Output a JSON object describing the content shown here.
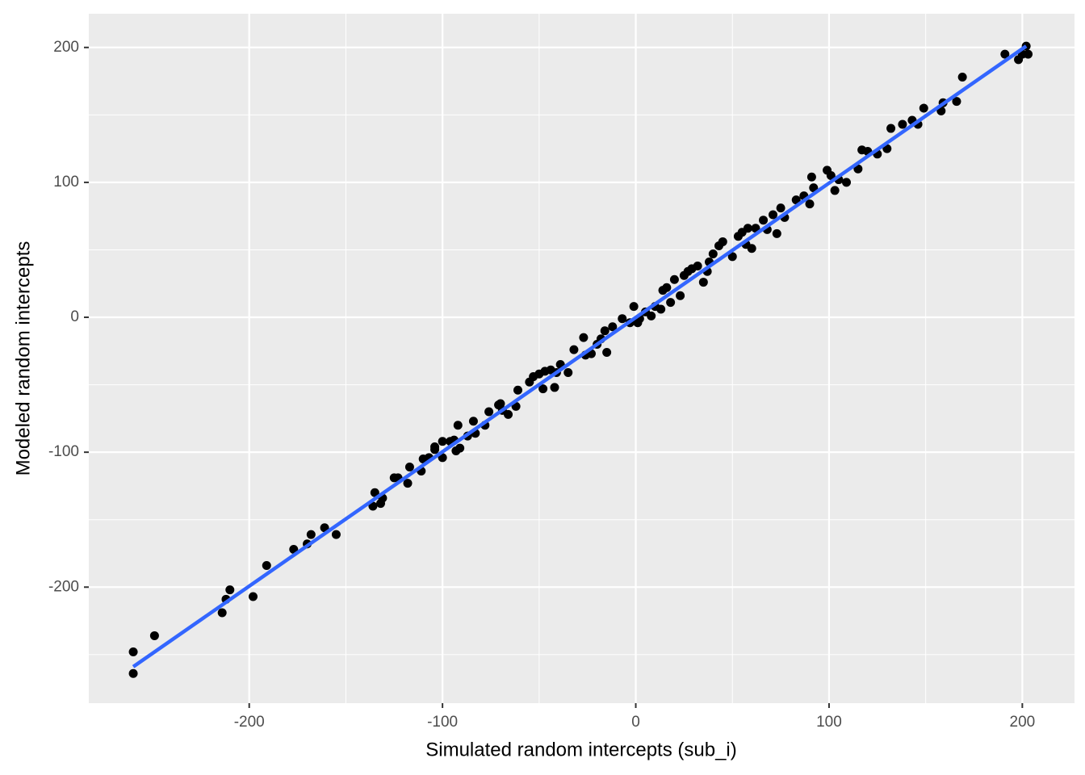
{
  "chart_data": {
    "type": "scatter",
    "x_label": "Simulated random intercepts (sub_i)",
    "y_label": "Modeled random intercepts",
    "xlim": [
      -283,
      227
    ],
    "ylim": [
      -286,
      225
    ],
    "xticks": [
      -200,
      -100,
      0,
      100,
      200
    ],
    "yticks": [
      -200,
      -100,
      0,
      100,
      200
    ],
    "x_minor_ticks": [
      -150,
      -50,
      50,
      150
    ],
    "y_minor_ticks": [
      -250,
      -150,
      -50,
      50,
      150
    ],
    "grid": true,
    "color": "#000000",
    "background": "#ebebeb",
    "x": [
      -260,
      -260,
      -249,
      -214,
      -212,
      -210,
      -198,
      -191,
      -177,
      -170,
      -168,
      -161,
      -155,
      -136,
      -135,
      -132,
      -131,
      -125,
      -123,
      -118,
      -117,
      -111,
      -110,
      -107,
      -104,
      -100,
      -100,
      -104,
      -96,
      -94,
      -93,
      -92,
      -91,
      -87,
      -84,
      -83,
      -78,
      -76,
      -71,
      -70,
      -69,
      -66,
      -62,
      -61,
      -55,
      -53,
      -50,
      -48,
      -47,
      -44,
      -42,
      -41,
      -39,
      -35,
      -32,
      -27,
      -26,
      -23,
      -20,
      -18,
      -15,
      -16,
      -12,
      -7,
      -3,
      -1,
      1,
      2,
      5,
      8,
      10,
      13,
      14,
      16,
      18,
      20,
      23,
      25,
      27,
      29,
      32,
      35,
      37,
      38,
      40,
      43,
      45,
      50,
      53,
      55,
      57,
      58,
      60,
      62,
      66,
      68,
      71,
      73,
      75,
      77,
      83,
      87,
      90,
      91,
      92,
      99,
      101,
      103,
      105,
      109,
      115,
      117,
      120,
      125,
      130,
      132,
      138,
      143,
      146,
      149,
      158,
      159,
      166,
      169,
      191,
      198,
      200,
      202,
      203
    ],
    "y": [
      -248,
      -264,
      -236,
      -219,
      -209,
      -202,
      -207,
      -184,
      -172,
      -168,
      -161,
      -156,
      -161,
      -140,
      -130,
      -138,
      -134,
      -119,
      -119,
      -123,
      -111,
      -114,
      -105,
      -104,
      -98,
      -104,
      -92,
      -96,
      -92,
      -91,
      -99,
      -80,
      -97,
      -88,
      -77,
      -86,
      -80,
      -70,
      -65,
      -64,
      -69,
      -72,
      -66,
      -54,
      -48,
      -44,
      -42,
      -53,
      -40,
      -39,
      -52,
      -41,
      -35,
      -41,
      -24,
      -15,
      -28,
      -27,
      -20,
      -16,
      -26,
      -10,
      -7,
      -1,
      -4,
      8,
      -4,
      -1,
      4,
      1,
      8,
      6,
      20,
      22,
      11,
      28,
      16,
      31,
      34,
      36,
      38,
      26,
      34,
      41,
      47,
      53,
      56,
      45,
      60,
      63,
      54,
      66,
      51,
      66,
      72,
      65,
      76,
      62,
      81,
      74,
      87,
      90,
      84,
      104,
      96,
      109,
      105,
      94,
      102,
      100,
      110,
      124,
      123,
      121,
      125,
      140,
      143,
      146,
      143,
      155,
      153,
      159,
      160,
      178,
      195,
      191,
      195,
      201,
      195
    ],
    "fit": {
      "color": "#3366ff",
      "x": [
        -260,
        202
      ],
      "y": [
        -259,
        201
      ]
    }
  }
}
